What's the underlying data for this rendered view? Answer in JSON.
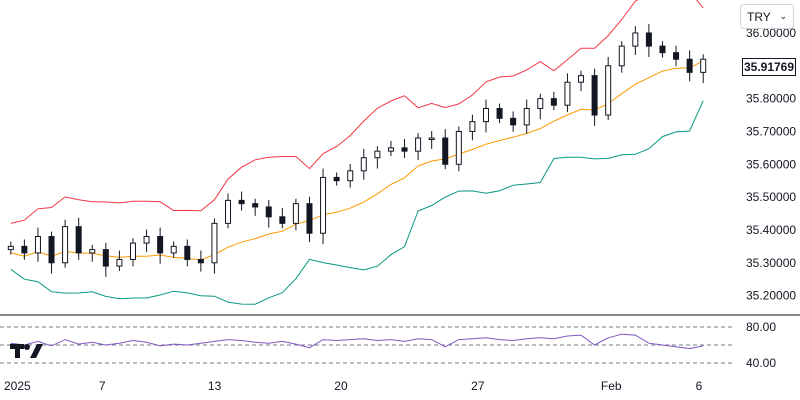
{
  "currency_select": {
    "value": "TRY",
    "icon": "chevron-down-icon"
  },
  "logo": {
    "name": "tradingview-logo-icon"
  },
  "chart_data": [
    {
      "type": "candlestick",
      "title": "",
      "ylim": [
        35.15,
        36.07
      ],
      "y_ticks": [
        "36.00000",
        "35.90000",
        "35.80000",
        "35.70000",
        "35.60000",
        "35.50000",
        "35.40000",
        "35.30000",
        "35.20000"
      ],
      "y_tick_values": [
        36.0,
        35.9,
        35.8,
        35.7,
        35.6,
        35.5,
        35.4,
        35.3,
        35.2
      ],
      "x_labels": [
        "2025",
        "7",
        "13",
        "20",
        "27",
        "Feb",
        "6"
      ],
      "last_price": "35.91769",
      "series": [
        {
          "name": "",
          "kind": "candles",
          "color_up": "#131722",
          "color_down": "#131722"
        },
        {
          "name": "",
          "kind": "band-upper",
          "color": "#f23645"
        },
        {
          "name": "",
          "kind": "band-middle",
          "color": "#ff9800"
        },
        {
          "name": "",
          "kind": "band-lower",
          "color": "#089981"
        }
      ],
      "close_path": [
        35.35,
        35.33,
        35.38,
        35.3,
        35.41,
        35.33,
        35.34,
        35.29,
        35.31,
        35.36,
        35.38,
        35.33,
        35.35,
        35.31,
        35.3,
        35.42,
        35.49,
        35.48,
        35.47,
        35.44,
        35.42,
        35.48,
        35.39,
        35.56,
        35.55,
        35.58,
        35.62,
        35.64,
        35.65,
        35.64,
        35.68,
        35.68,
        35.6,
        35.7,
        35.73,
        35.77,
        35.74,
        35.72,
        35.77,
        35.8,
        35.78,
        35.85,
        35.87,
        35.75,
        35.9,
        35.96,
        36.0,
        35.96,
        35.94,
        35.92,
        35.88,
        35.92
      ]
    },
    {
      "type": "line",
      "title": "",
      "ylim": [
        30,
        90
      ],
      "y_ticks": [
        "80.00",
        "40.00"
      ],
      "y_tick_values": [
        80,
        40
      ],
      "bands": [
        80,
        60,
        40
      ],
      "series": [
        {
          "name": "",
          "color": "#7e57c2",
          "values": [
            62,
            60,
            64,
            59,
            66,
            61,
            63,
            60,
            62,
            65,
            63,
            59,
            61,
            60,
            62,
            64,
            66,
            65,
            63,
            62,
            64,
            61,
            57,
            66,
            65,
            66,
            67,
            65,
            66,
            64,
            67,
            66,
            58,
            66,
            67,
            68,
            66,
            65,
            67,
            68,
            67,
            70,
            71,
            60,
            68,
            72,
            71,
            62,
            60,
            58,
            56,
            59
          ]
        }
      ]
    }
  ]
}
